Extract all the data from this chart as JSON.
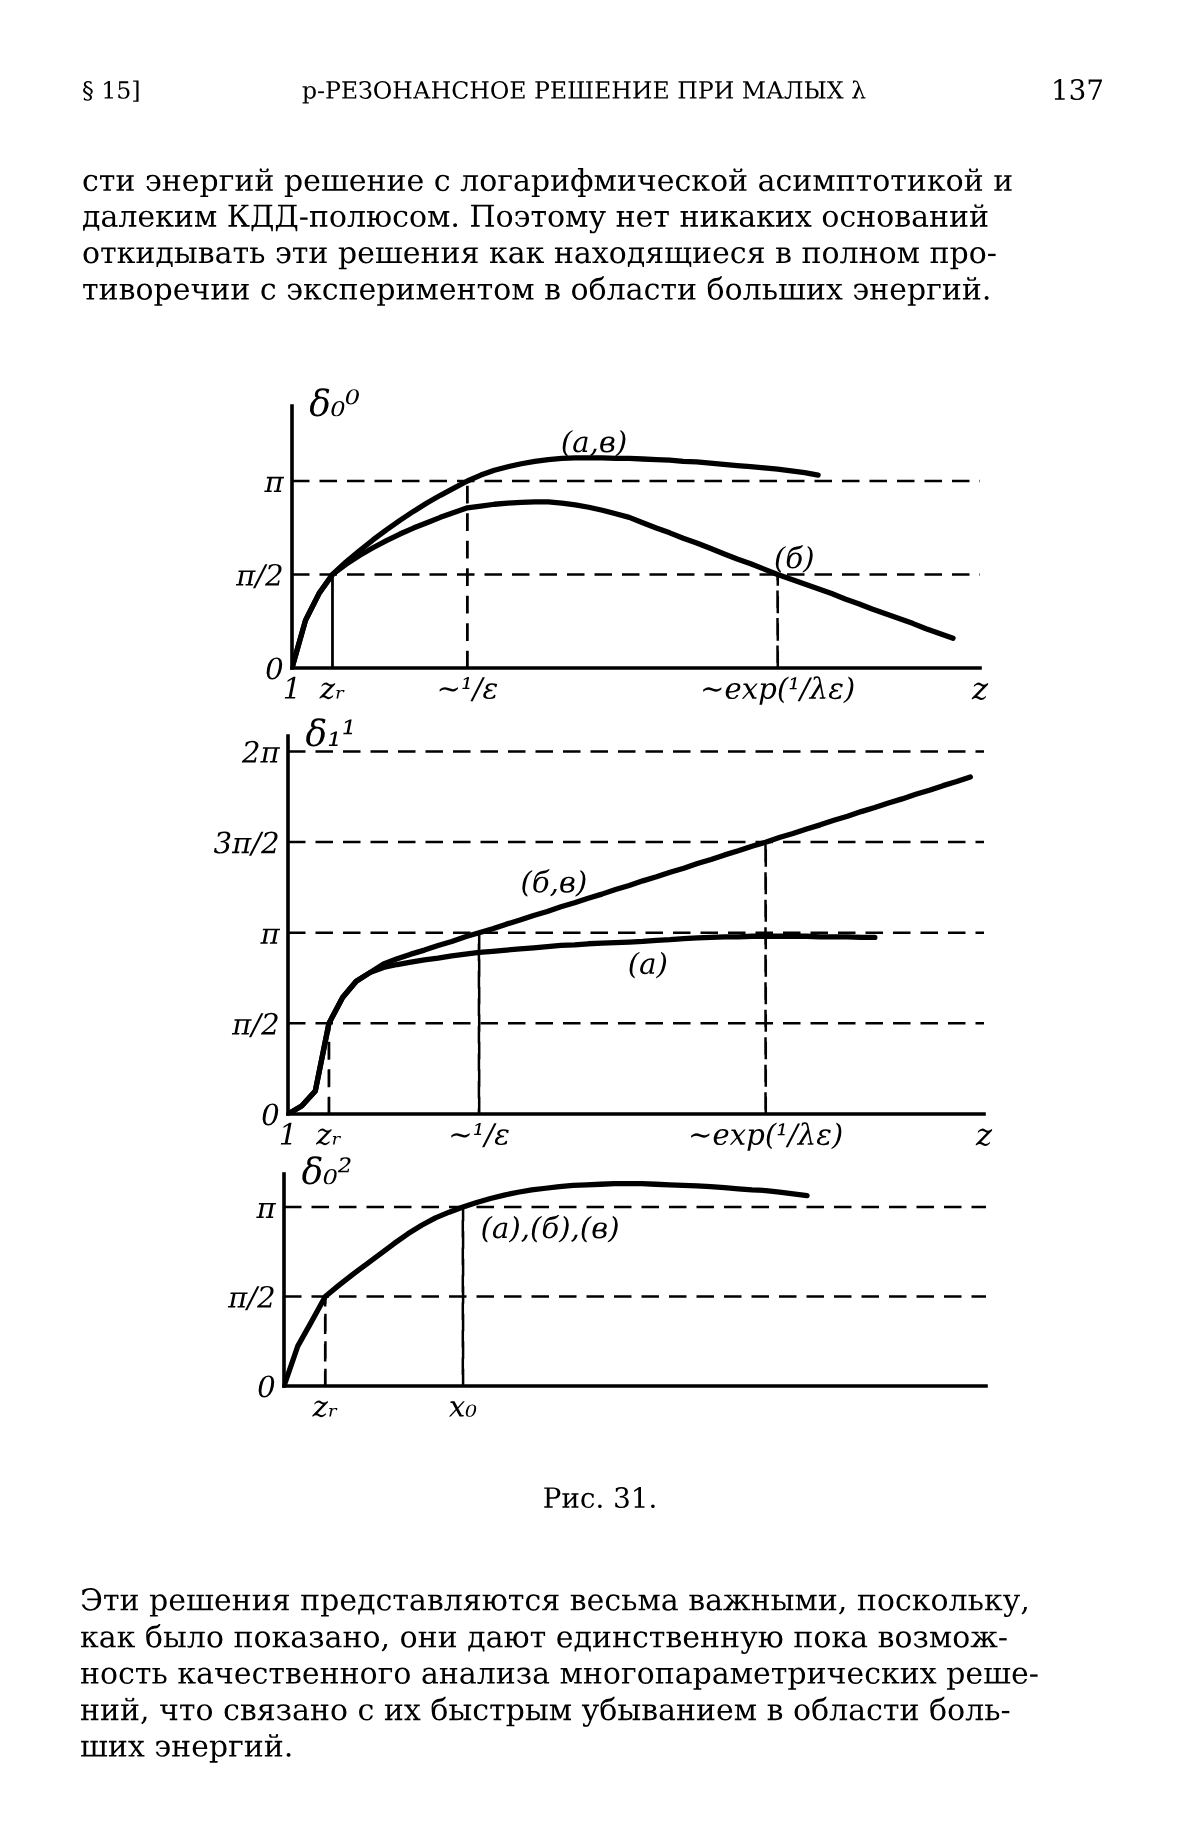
{
  "chart_data": [
    {
      "type": "line",
      "title": "p-РЕЗОНАНСНОЕ РЕШЕНИЕ ПРИ МАЛЫХ λ",
      "ylabel": "δ₀⁰",
      "xlabel": "z",
      "annotations": [
        "§ 15]",
        "137",
        "сти энергий решение с логарифмической асимптотикой и\nдалеким КДД-полюсом. Поэтому нет никаких оснований\nоткидывать эти решения как находящиеся в полном про-\nтиворечии с экспериментом в области больших энергий."
      ],
      "categories": [
        "1",
        null,
        null,
        "zᵣ",
        null,
        null,
        null,
        null,
        null,
        null,
        null,
        null,
        null,
        "~¹/ε",
        null,
        null,
        null,
        null,
        null,
        null,
        null,
        null,
        null,
        null,
        null,
        null,
        null,
        null,
        null,
        null,
        null,
        null,
        null,
        null,
        null,
        null,
        "~exp(¹/λε)",
        null,
        null,
        null,
        null,
        null,
        null,
        null,
        null,
        null,
        null,
        null,
        null,
        null,
        null
      ],
      "ylim": [
        0,
        4.4
      ],
      "yticks": [
        0,
        {
          "value": 1.5708,
          "label": "π/2"
        },
        {
          "value": 3.1416,
          "label": "π"
        }
      ],
      "ref_lines": [
        {
          "axis": "y",
          "value": 1.5708,
          "line_style": "dashed",
          "color": "#000000"
        },
        {
          "axis": "y",
          "value": 3.1416,
          "line_style": "dashed",
          "color": "#000000"
        }
      ],
      "series": [
        {
          "name": "(а,в)",
          "color": "#000000",
          "values": [
            0,
            0.8,
            1.25,
            1.57,
            1.78,
            1.97,
            2.15,
            2.32,
            2.48,
            2.63,
            2.77,
            2.9,
            3.02,
            3.14,
            3.24,
            3.32,
            3.38,
            3.43,
            3.47,
            3.5,
            3.52,
            3.53,
            3.53,
            3.53,
            3.52,
            3.52,
            3.51,
            3.5,
            3.49,
            3.47,
            3.46,
            3.44,
            3.42,
            3.4,
            3.38,
            3.36,
            3.34,
            3.31,
            3.28,
            3.24,
            null,
            null,
            null,
            null,
            null,
            null,
            null,
            null,
            null,
            null,
            null
          ]
        },
        {
          "name": "(б)",
          "color": "#000000",
          "values": [
            0,
            0.8,
            1.25,
            1.57,
            1.74,
            1.89,
            2.02,
            2.14,
            2.25,
            2.35,
            2.44,
            2.53,
            2.61,
            2.69,
            2.72,
            2.75,
            2.77,
            2.78,
            2.79,
            2.79,
            2.77,
            2.74,
            2.7,
            2.65,
            2.59,
            2.53,
            2.44,
            2.35,
            2.27,
            2.18,
            2.1,
            2.01,
            1.92,
            1.83,
            1.75,
            1.66,
            1.57,
            1.49,
            1.41,
            1.33,
            1.25,
            1.16,
            1.08,
            0.99,
            0.91,
            0.83,
            0.75,
            0.66,
            0.58,
            0.5,
            null
          ]
        },
        {
          "type": "bar",
          "line_style": "solid",
          "color": "#000000",
          "values": [
            null,
            null,
            null,
            1.57,
            null,
            null,
            null,
            null,
            null,
            null,
            null,
            null,
            null,
            null,
            null,
            null,
            null,
            null,
            null,
            null,
            null,
            null,
            null,
            null,
            null,
            null,
            null,
            null,
            null,
            null,
            null,
            null,
            null,
            null,
            null,
            null,
            null,
            null,
            null,
            null,
            null,
            null,
            null,
            null,
            null,
            null,
            null,
            null,
            null,
            null,
            null
          ]
        },
        {
          "type": "bar",
          "line_style": "dashed",
          "color": "#000000",
          "values": [
            null,
            null,
            null,
            null,
            null,
            null,
            null,
            null,
            null,
            null,
            null,
            null,
            null,
            3.14,
            null,
            null,
            null,
            null,
            null,
            null,
            null,
            null,
            null,
            null,
            null,
            null,
            null,
            null,
            null,
            null,
            null,
            null,
            null,
            null,
            null,
            null,
            1.57,
            null,
            null,
            null,
            null,
            null,
            null,
            null,
            null,
            null,
            null,
            null,
            null,
            null,
            null
          ]
        }
      ]
    },
    {
      "type": "line",
      "ylabel": "δ₁¹",
      "xlabel": "z",
      "categories": [
        "1",
        null,
        null,
        "zᵣ",
        null,
        null,
        null,
        null,
        null,
        null,
        null,
        null,
        null,
        null,
        "~¹/ε",
        null,
        null,
        null,
        null,
        null,
        null,
        null,
        null,
        null,
        null,
        null,
        null,
        null,
        null,
        null,
        null,
        null,
        null,
        null,
        null,
        "~exp(¹/λε)",
        null,
        null,
        null,
        null,
        null,
        null,
        null,
        null,
        null,
        null,
        null,
        null,
        null,
        null,
        null
      ],
      "ylim": [
        0,
        6.55
      ],
      "yticks": [
        0,
        {
          "value": 1.5708,
          "label": "π/2"
        },
        {
          "value": 3.1416,
          "label": "π"
        },
        {
          "value": 4.7124,
          "label": "3π/2"
        },
        {
          "value": 6.2832,
          "label": "2π"
        }
      ],
      "ref_lines": [
        {
          "axis": "y",
          "value": 1.5708,
          "line_style": "dashed",
          "color": "#000000"
        },
        {
          "axis": "y",
          "value": 3.1416,
          "line_style": "dashed",
          "color": "#000000"
        },
        {
          "axis": "y",
          "value": 4.7124,
          "line_style": "dashed",
          "color": "#000000"
        },
        {
          "axis": "y",
          "value": 6.2832,
          "line_style": "dashed",
          "color": "#000000"
        }
      ],
      "series": [
        {
          "name": "(б,в)",
          "color": "#000000",
          "values": [
            0,
            0.14,
            0.4,
            1.57,
            2.02,
            2.3,
            2.45,
            2.6,
            2.69,
            2.77,
            2.84,
            2.92,
            2.99,
            3.07,
            3.14,
            3.21,
            3.29,
            3.36,
            3.44,
            3.51,
            3.59,
            3.66,
            3.74,
            3.81,
            3.89,
            3.96,
            4.04,
            4.11,
            4.19,
            4.26,
            4.34,
            4.41,
            4.49,
            4.56,
            4.64,
            4.71,
            4.79,
            4.86,
            4.94,
            5.01,
            5.09,
            5.16,
            5.24,
            5.31,
            5.39,
            5.46,
            5.54,
            5.61,
            5.69,
            5.76,
            5.84
          ]
        },
        {
          "name": "(а)",
          "color": "#000000",
          "values": [
            0,
            0.14,
            0.4,
            1.57,
            2.02,
            2.3,
            2.45,
            2.54,
            2.59,
            2.63,
            2.67,
            2.7,
            2.74,
            2.77,
            2.8,
            2.82,
            2.84,
            2.86,
            2.88,
            2.9,
            2.92,
            2.93,
            2.95,
            2.96,
            2.97,
            2.98,
            2.99,
            3.01,
            3.02,
            3.04,
            3.05,
            3.06,
            3.07,
            3.07,
            3.08,
            3.08,
            3.08,
            3.08,
            3.08,
            3.07,
            3.07,
            3.07,
            3.06,
            3.06,
            null,
            null,
            null,
            null,
            null,
            null,
            null
          ]
        },
        {
          "type": "bar",
          "line_style": "dashed",
          "color": "#000000",
          "values": [
            null,
            null,
            null,
            1.57,
            null,
            null,
            null,
            null,
            null,
            null,
            null,
            null,
            null,
            null,
            3.14,
            null,
            null,
            null,
            null,
            null,
            null,
            null,
            null,
            null,
            null,
            null,
            null,
            null,
            null,
            null,
            null,
            null,
            null,
            null,
            null,
            4.71,
            null,
            null,
            null,
            null,
            null,
            null,
            null,
            null,
            null,
            null,
            null,
            null,
            null,
            null,
            null
          ]
        }
      ]
    },
    {
      "type": "line",
      "ylabel": "δ₀²",
      "annotations": [
        "Рис. 31.",
        "Эти решения представляются весьма важными, поскольку,\nкак было показано, они дают единственную пока возмож-\nность качественного анализа многопараметрических реше-\nний, что связано с их быстрым убыванием в области боль-\nших энергий."
      ],
      "categories": [
        null,
        null,
        null,
        "zᵣ",
        null,
        null,
        null,
        null,
        null,
        null,
        null,
        null,
        null,
        "x₀",
        null,
        null,
        null,
        null,
        null,
        null,
        null,
        null,
        null,
        null,
        null,
        null,
        null,
        null,
        null,
        null,
        null,
        null,
        null,
        null,
        null,
        null,
        null,
        null,
        null,
        null,
        null,
        null,
        null,
        null,
        null,
        null,
        null,
        null,
        null,
        null,
        null
      ],
      "ylim": [
        0,
        3.72
      ],
      "yticks": [
        0,
        {
          "value": 1.5708,
          "label": "π/2"
        },
        {
          "value": 3.1416,
          "label": "π"
        }
      ],
      "ref_lines": [
        {
          "axis": "y",
          "value": 1.5708,
          "line_style": "dashed",
          "color": "#000000"
        },
        {
          "axis": "y",
          "value": 3.1416,
          "line_style": "dashed",
          "color": "#000000"
        }
      ],
      "series": [
        {
          "name": "(а),(б),(в)",
          "color": "#000000",
          "values": [
            0,
            0.7,
            1.13,
            1.57,
            1.77,
            1.96,
            2.14,
            2.32,
            2.5,
            2.67,
            2.82,
            2.95,
            3.05,
            3.14,
            3.22,
            3.29,
            3.35,
            3.4,
            3.44,
            3.47,
            3.5,
            3.52,
            3.53,
            3.54,
            3.55,
            3.55,
            3.55,
            3.54,
            3.53,
            3.52,
            3.51,
            3.5,
            3.48,
            3.46,
            3.44,
            3.43,
            3.4,
            3.37,
            3.34,
            null,
            null,
            null,
            null,
            null,
            null,
            null,
            null,
            null,
            null,
            null,
            null
          ]
        },
        {
          "type": "bar",
          "line_style": "dashed",
          "color": "#000000",
          "values": [
            null,
            null,
            null,
            1.57,
            null,
            null,
            null,
            null,
            null,
            null,
            null,
            null,
            null,
            3.14,
            null,
            null,
            null,
            null,
            null,
            null,
            null,
            null,
            null,
            null,
            null,
            null,
            null,
            null,
            null,
            null,
            null,
            null,
            null,
            null,
            null,
            null,
            null,
            null,
            null,
            null,
            null,
            null,
            null,
            null,
            null,
            null,
            null,
            null,
            null,
            null,
            null
          ]
        }
      ]
    }
  ]
}
